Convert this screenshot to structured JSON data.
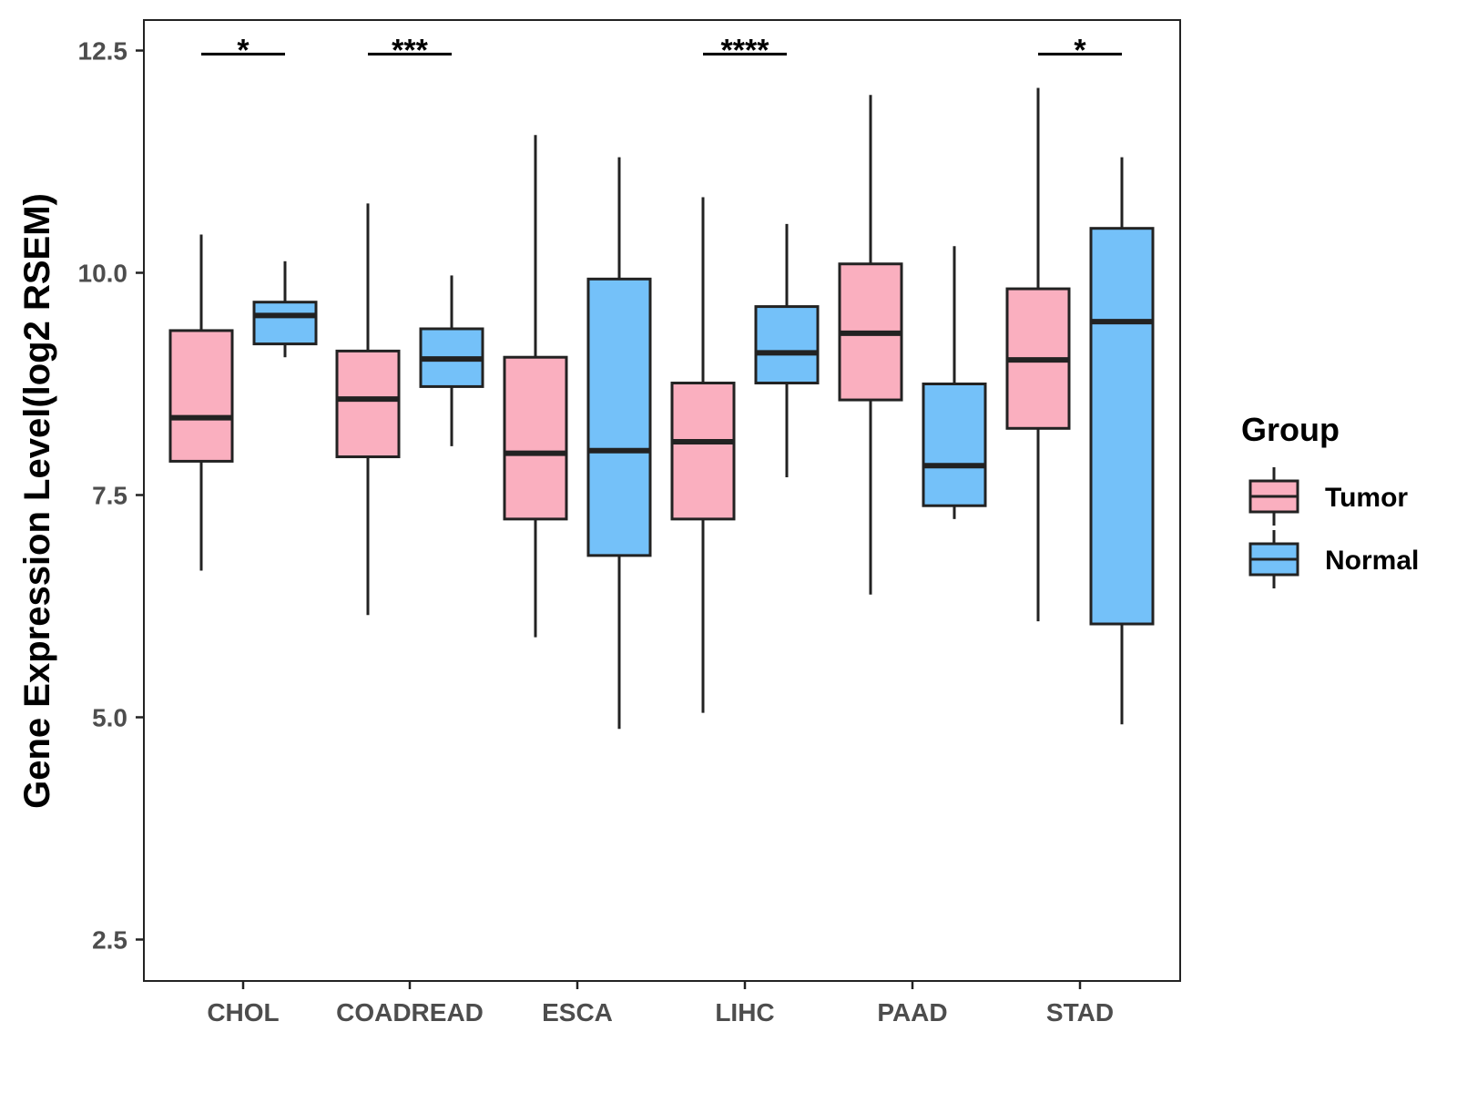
{
  "chart_data": {
    "type": "boxplot",
    "ylabel": "Gene Expression Level(log2 RSEM)",
    "xlabel": "",
    "ylim": [
      2.2,
      13.0
    ],
    "yticks": [
      2.5,
      5.0,
      7.5,
      10.0,
      12.5
    ],
    "ytick_labels": [
      "2.5",
      "5.0",
      "7.5",
      "10.0",
      "12.5"
    ],
    "categories": [
      "CHOL",
      "COADREAD",
      "ESCA",
      "LIHC",
      "PAAD",
      "STAD"
    ],
    "legend": {
      "title": "Group",
      "position": "right",
      "entries": [
        {
          "name": "Tumor",
          "color": "#FAAFBF"
        },
        {
          "name": "Normal",
          "color": "#74C1F9"
        }
      ]
    },
    "series": [
      {
        "name": "Tumor",
        "color": "#FAAFBF",
        "boxes": [
          {
            "category": "CHOL",
            "min": 6.65,
            "q1": 7.88,
            "median": 8.37,
            "q3": 9.35,
            "max": 10.43
          },
          {
            "category": "COADREAD",
            "min": 6.15,
            "q1": 7.93,
            "median": 8.58,
            "q3": 9.12,
            "max": 10.78
          },
          {
            "category": "ESCA",
            "min": 5.9,
            "q1": 7.23,
            "median": 7.97,
            "q3": 9.05,
            "max": 11.55
          },
          {
            "category": "LIHC",
            "min": 5.05,
            "q1": 7.23,
            "median": 8.1,
            "q3": 8.76,
            "max": 10.85
          },
          {
            "category": "PAAD",
            "min": 6.38,
            "q1": 8.57,
            "median": 9.32,
            "q3": 10.1,
            "max": 12.0
          },
          {
            "category": "STAD",
            "min": 6.08,
            "q1": 8.25,
            "median": 9.02,
            "q3": 9.82,
            "max": 12.08
          }
        ]
      },
      {
        "name": "Normal",
        "color": "#74C1F9",
        "boxes": [
          {
            "category": "CHOL",
            "min": 9.05,
            "q1": 9.2,
            "median": 9.52,
            "q3": 9.67,
            "max": 10.13
          },
          {
            "category": "COADREAD",
            "min": 8.05,
            "q1": 8.72,
            "median": 9.03,
            "q3": 9.37,
            "max": 9.97
          },
          {
            "category": "ESCA",
            "min": 4.87,
            "q1": 6.82,
            "median": 8.0,
            "q3": 9.93,
            "max": 11.3
          },
          {
            "category": "LIHC",
            "min": 7.7,
            "q1": 8.76,
            "median": 9.1,
            "q3": 9.62,
            "max": 10.55
          },
          {
            "category": "PAAD",
            "min": 7.23,
            "q1": 7.38,
            "median": 7.83,
            "q3": 8.75,
            "max": 10.3
          },
          {
            "category": "STAD",
            "min": 4.92,
            "q1": 6.05,
            "median": 9.45,
            "q3": 10.5,
            "max": 11.3
          }
        ]
      }
    ],
    "significance": [
      {
        "category": "CHOL",
        "label": "*"
      },
      {
        "category": "COADREAD",
        "label": "***"
      },
      {
        "category": "LIHC",
        "label": "****"
      },
      {
        "category": "STAD",
        "label": "*"
      }
    ],
    "colors": {
      "tumor": "#FAAFBF",
      "normal": "#74C1F9",
      "outline": "#222222",
      "axis_text": "#4d4d4d"
    }
  }
}
